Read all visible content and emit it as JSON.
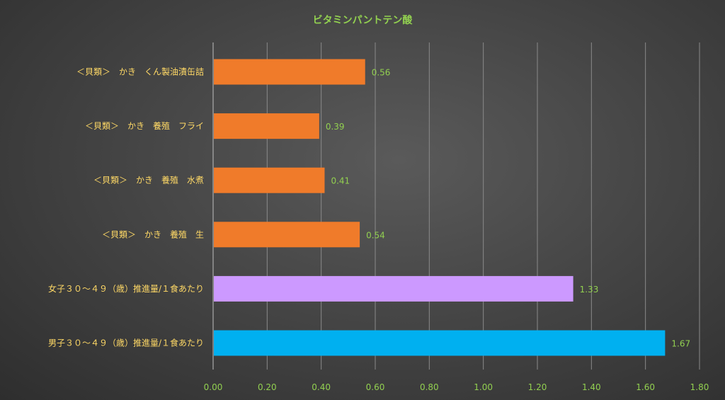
{
  "chart_data": {
    "type": "bar",
    "orientation": "horizontal",
    "title": "ビタミンパントテン酸",
    "categories": [
      "＜貝類＞　かき　くん製油漬缶詰",
      "＜貝類＞　かき　養殖　フライ",
      "＜貝類＞　かき　養殖　水煮",
      "＜貝類＞　かき　養殖　生",
      "女子３０～４９（歳）推進量/１食あたり",
      "男子３０～４９（歳）推進量/１食あたり"
    ],
    "values": [
      0.56,
      0.39,
      0.41,
      0.54,
      1.33,
      1.67
    ],
    "data_labels": [
      "0.56",
      "0.39",
      "0.41",
      "0.54",
      "1.33",
      "1.67"
    ],
    "bar_colors": [
      "#f07b2a",
      "#f07b2a",
      "#f07b2a",
      "#f07b2a",
      "#cc99ff",
      "#00b0f0"
    ],
    "xlim": [
      0,
      1.8
    ],
    "x_ticks": [
      "0.00",
      "0.20",
      "0.40",
      "0.60",
      "0.80",
      "1.00",
      "1.20",
      "1.40",
      "1.60",
      "1.80"
    ],
    "grid": true,
    "legend": "none",
    "colors": {
      "title": "#92d050",
      "category_labels": "#ffd966",
      "tick_labels": "#92d050",
      "data_labels": "#92d050"
    }
  }
}
